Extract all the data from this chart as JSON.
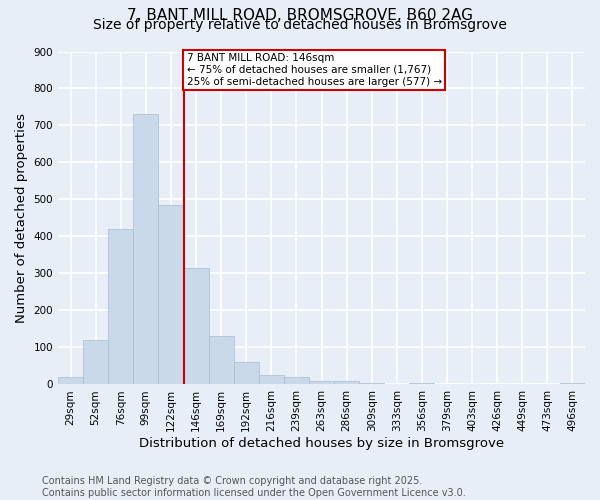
{
  "title_line1": "7, BANT MILL ROAD, BROMSGROVE, B60 2AG",
  "title_line2": "Size of property relative to detached houses in Bromsgrove",
  "xlabel": "Distribution of detached houses by size in Bromsgrove",
  "ylabel": "Number of detached properties",
  "footnote": "Contains HM Land Registry data © Crown copyright and database right 2025.\nContains public sector information licensed under the Open Government Licence v3.0.",
  "bar_labels": [
    "29sqm",
    "52sqm",
    "76sqm",
    "99sqm",
    "122sqm",
    "146sqm",
    "169sqm",
    "192sqm",
    "216sqm",
    "239sqm",
    "263sqm",
    "286sqm",
    "309sqm",
    "333sqm",
    "356sqm",
    "379sqm",
    "403sqm",
    "426sqm",
    "449sqm",
    "473sqm",
    "496sqm"
  ],
  "bar_values": [
    20,
    120,
    420,
    730,
    485,
    315,
    130,
    60,
    25,
    20,
    8,
    8,
    5,
    0,
    5,
    0,
    0,
    0,
    0,
    0,
    5
  ],
  "bar_color": "#c9d9ea",
  "bar_edge_color": "#aabcce",
  "marker_index": 5,
  "marker_label_line1": "7 BANT MILL ROAD: 146sqm",
  "marker_label_line2": "← 75% of detached houses are smaller (1,767)",
  "marker_label_line3": "25% of semi-detached houses are larger (577) →",
  "marker_color": "#cc0000",
  "annotation_box_color": "#ffffff",
  "annotation_border_color": "#cc0000",
  "ylim": [
    0,
    900
  ],
  "yticks": [
    0,
    100,
    200,
    300,
    400,
    500,
    600,
    700,
    800,
    900
  ],
  "bg_color": "#e8eef8",
  "plot_bg_color": "#e8eef8",
  "grid_color": "#ffffff",
  "title_fontsize": 11,
  "subtitle_fontsize": 10,
  "axis_label_fontsize": 9.5,
  "tick_fontsize": 7.5,
  "annotation_fontsize": 7.5,
  "footnote_fontsize": 7
}
